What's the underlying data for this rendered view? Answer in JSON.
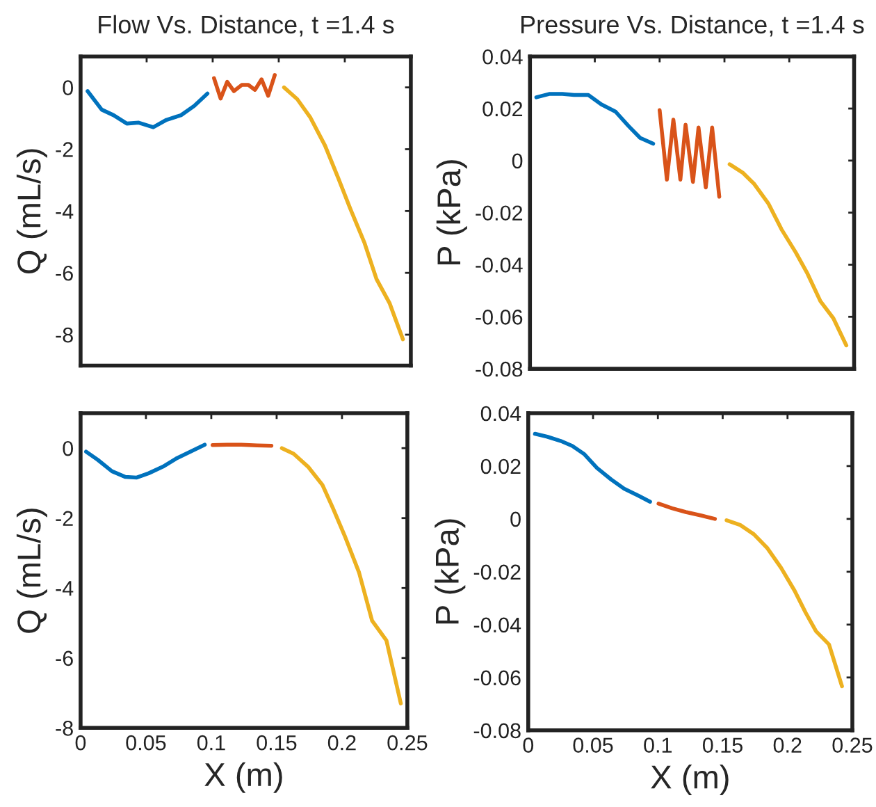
{
  "chart_data": [
    {
      "type": "line",
      "title": "Flow Vs. Distance, t =1.4 s",
      "ylabel": "Q (mL/s)",
      "xlim": [
        0,
        0.25
      ],
      "xticks": [
        0,
        0.05,
        0.1,
        0.15,
        0.2,
        0.25
      ],
      "ylim": [
        -9,
        1
      ],
      "yticks": [
        -8,
        -6,
        -4,
        -2,
        0
      ],
      "tick_labels": "y",
      "grid": false,
      "legend": false,
      "series": [
        {
          "color": "#0072bd",
          "x": [
            0.0053,
            0.016,
            0.025,
            0.035,
            0.044,
            0.055,
            0.065,
            0.076,
            0.086,
            0.096
          ],
          "values": [
            -0.12,
            -0.72,
            -0.9,
            -1.17,
            -1.14,
            -1.29,
            -1.05,
            -0.9,
            -0.6,
            -0.2
          ]
        },
        {
          "color": "#d95319",
          "x": [
            0.101,
            0.106,
            0.111,
            0.116,
            0.122,
            0.127,
            0.132,
            0.137,
            0.142,
            0.147
          ],
          "values": [
            0.3,
            -0.36,
            0.18,
            -0.12,
            0.08,
            0.08,
            -0.08,
            0.26,
            -0.27,
            0.4
          ]
        },
        {
          "color": "#edb120",
          "x": [
            0.154,
            0.164,
            0.174,
            0.185,
            0.195,
            0.204,
            0.215,
            0.224,
            0.234,
            0.244
          ],
          "values": [
            0,
            -0.38,
            -0.98,
            -1.88,
            -2.93,
            -3.91,
            -5.04,
            -6.2,
            -6.99,
            -8.15
          ]
        }
      ]
    },
    {
      "type": "line",
      "title": "Pressure Vs. Distance, t =1.4 s",
      "ylabel": "P (kPa)",
      "xlim": [
        0,
        0.25
      ],
      "xticks": [
        0,
        0.05,
        0.1,
        0.15,
        0.2,
        0.25
      ],
      "ylim": [
        -0.08,
        0.04
      ],
      "yticks": [
        -0.08,
        -0.06,
        -0.04,
        -0.02,
        0,
        0.02,
        0.04
      ],
      "tick_labels": "y",
      "grid": false,
      "legend": false,
      "series": [
        {
          "color": "#0072bd",
          "x": [
            0.0049,
            0.0148,
            0.025,
            0.034,
            0.045,
            0.055,
            0.066,
            0.076,
            0.085,
            0.095
          ],
          "values": [
            0.0243,
            0.0256,
            0.0256,
            0.0252,
            0.0252,
            0.0216,
            0.0188,
            0.0133,
            0.0087,
            0.0065
          ]
        },
        {
          "color": "#d95319",
          "x": [
            0.1,
            0.1056,
            0.1106,
            0.116,
            0.12,
            0.1257,
            0.13,
            0.1356,
            0.1405,
            0.146
          ],
          "values": [
            0.0194,
            -0.0073,
            0.0157,
            -0.0073,
            0.0138,
            -0.0082,
            0.0127,
            -0.0103,
            0.0127,
            -0.0139
          ]
        },
        {
          "color": "#edb120",
          "x": [
            0.154,
            0.164,
            0.173,
            0.184,
            0.194,
            0.205,
            0.214,
            0.224,
            0.234,
            0.244
          ],
          "values": [
            -0.0014,
            -0.0046,
            -0.009,
            -0.0166,
            -0.0264,
            -0.0353,
            -0.0434,
            -0.054,
            -0.0606,
            -0.071
          ]
        }
      ]
    },
    {
      "type": "line",
      "xlabel": "X (m)",
      "ylabel": "Q (mL/s)",
      "xlim": [
        0,
        0.25
      ],
      "xticks": [
        0,
        0.05,
        0.1,
        0.15,
        0.2,
        0.25
      ],
      "ylim": [
        -8,
        1
      ],
      "yticks": [
        -8,
        -6,
        -4,
        -2,
        0
      ],
      "grid": false,
      "legend": false,
      "series": [
        {
          "color": "#0072bd",
          "x": [
            0.0042,
            0.013,
            0.024,
            0.034,
            0.043,
            0.052,
            0.063,
            0.073,
            0.084,
            0.095
          ],
          "values": [
            -0.1,
            -0.33,
            -0.66,
            -0.82,
            -0.84,
            -0.72,
            -0.53,
            -0.3,
            -0.1,
            0.1
          ]
        },
        {
          "color": "#d95319",
          "x": [
            0.101,
            0.112,
            0.123,
            0.135,
            0.146
          ],
          "values": [
            0.09,
            0.1,
            0.1,
            0.08,
            0.07
          ]
        },
        {
          "color": "#edb120",
          "x": [
            0.154,
            0.163,
            0.174,
            0.185,
            0.193,
            0.202,
            0.213,
            0.223,
            0.234,
            0.245
          ],
          "values": [
            0,
            -0.16,
            -0.53,
            -1.05,
            -1.71,
            -2.5,
            -3.55,
            -4.93,
            -5.5,
            -7.3
          ]
        }
      ]
    },
    {
      "type": "line",
      "xlabel": "X (m)",
      "ylabel": "P (kPa)",
      "xlim": [
        0,
        0.25
      ],
      "xticks": [
        0,
        0.05,
        0.1,
        0.15,
        0.2,
        0.25
      ],
      "ylim": [
        -0.08,
        0.04
      ],
      "yticks": [
        -0.08,
        -0.06,
        -0.04,
        -0.02,
        0,
        0.02,
        0.04
      ],
      "grid": false,
      "legend": false,
      "series": [
        {
          "color": "#0072bd",
          "x": [
            0.0052,
            0.0147,
            0.025,
            0.034,
            0.043,
            0.053,
            0.064,
            0.074,
            0.085,
            0.094
          ],
          "values": [
            0.0322,
            0.0311,
            0.0295,
            0.0276,
            0.0246,
            0.0193,
            0.0149,
            0.0114,
            0.0088,
            0.0065
          ]
        },
        {
          "color": "#d95319",
          "x": [
            0.1005,
            0.111,
            0.1215,
            0.134,
            0.144
          ],
          "values": [
            0.0058,
            0.004,
            0.0026,
            0.0012,
            0
          ]
        },
        {
          "color": "#edb120",
          "x": [
            0.153,
            0.1635,
            0.174,
            0.1845,
            0.195,
            0.2055,
            0.214,
            0.222,
            0.232,
            0.242
          ],
          "values": [
            -0.0005,
            -0.0023,
            -0.0058,
            -0.0111,
            -0.0185,
            -0.0272,
            -0.0355,
            -0.0425,
            -0.0475,
            -0.0633
          ]
        }
      ]
    }
  ]
}
